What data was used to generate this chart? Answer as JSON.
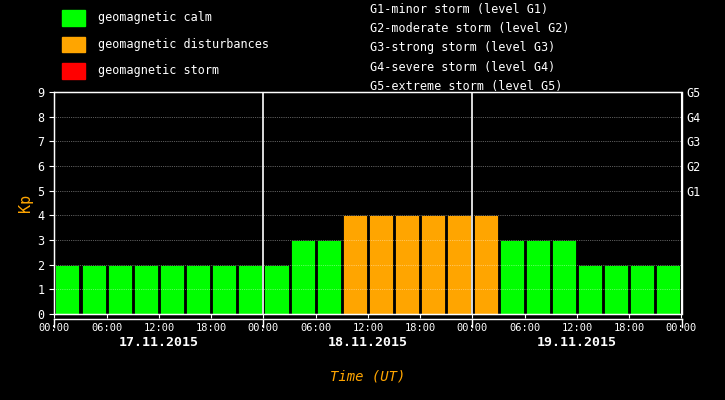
{
  "background_color": "#000000",
  "bar_color_green": "#00ff00",
  "bar_color_orange": "#ffa500",
  "bar_color_red": "#ff0000",
  "text_color_white": "#ffffff",
  "text_color_orange": "#ffa500",
  "kp_values": [
    2,
    2,
    2,
    2,
    2,
    2,
    2,
    2,
    2,
    3,
    3,
    4,
    4,
    4,
    4,
    4,
    4,
    3,
    3,
    3,
    2,
    2,
    2,
    2
  ],
  "kp_color_names": [
    "green",
    "green",
    "green",
    "green",
    "green",
    "green",
    "green",
    "green",
    "green",
    "green",
    "green",
    "orange",
    "orange",
    "orange",
    "orange",
    "orange",
    "orange",
    "green",
    "green",
    "green",
    "green",
    "green",
    "green",
    "green"
  ],
  "ylim_min": 0,
  "ylim_max": 9,
  "yticks": [
    0,
    1,
    2,
    3,
    4,
    5,
    6,
    7,
    8,
    9
  ],
  "ylabel": "Kp",
  "xlabel": "Time (UT)",
  "day_labels": [
    "17.11.2015",
    "18.11.2015",
    "19.11.2015"
  ],
  "xtick_labels": [
    "00:00",
    "06:00",
    "12:00",
    "18:00",
    "00:00",
    "06:00",
    "12:00",
    "18:00",
    "00:00",
    "06:00",
    "12:00",
    "18:00",
    "00:00"
  ],
  "right_tick_labels": [
    "G5",
    "G4",
    "G3",
    "G2",
    "G1"
  ],
  "right_tick_positions": [
    9,
    8,
    7,
    6,
    5
  ],
  "storm_legend_lines": [
    "G1-minor storm (level G1)",
    "G2-moderate storm (level G2)",
    "G3-strong storm (level G3)",
    "G4-severe storm (level G4)",
    "G5-extreme storm (level G5)"
  ],
  "legend_items": [
    {
      "color": "#00ff00",
      "label": "geomagnetic calm"
    },
    {
      "color": "#ffa500",
      "label": "geomagnetic disturbances"
    },
    {
      "color": "#ff0000",
      "label": "geomagnetic storm"
    }
  ]
}
